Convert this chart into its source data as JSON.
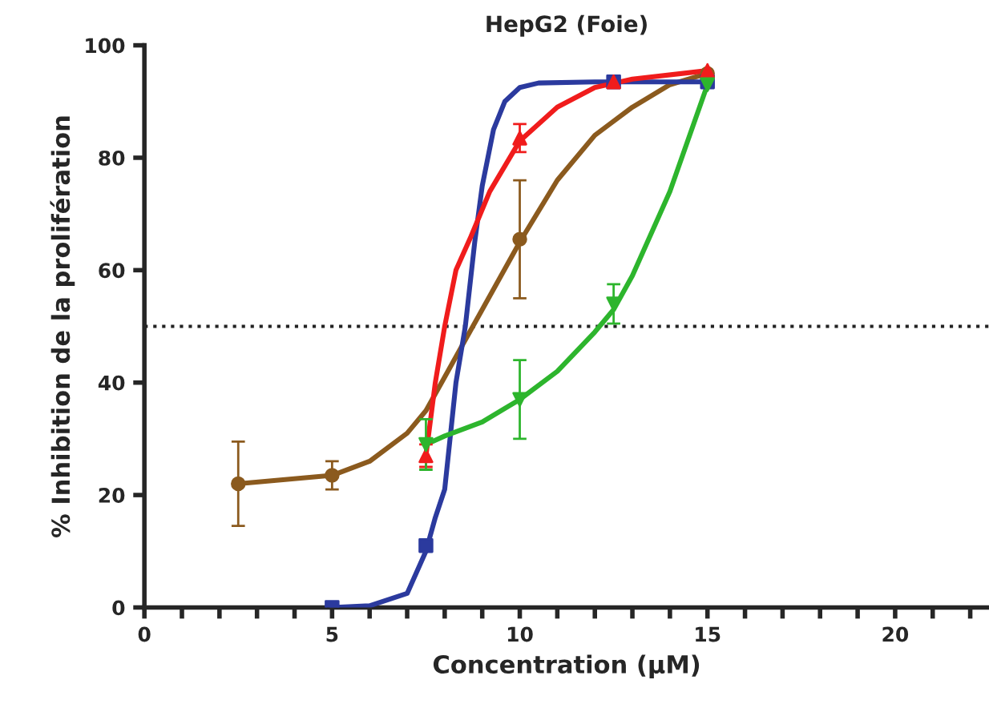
{
  "chart_data": {
    "type": "line",
    "title": "HepG2 (Foie)",
    "xlabel": "Concentration (μM)",
    "ylabel": "% Inhibition de la prolifération",
    "xlim": [
      0,
      22.5
    ],
    "ylim": [
      0,
      100
    ],
    "xticks": [
      0,
      {
        "value": 1,
        "label": null
      },
      {
        "value": 2,
        "label": null
      },
      {
        "value": 3,
        "label": null
      },
      {
        "value": 4,
        "label": null
      },
      5,
      {
        "value": 6,
        "label": null
      },
      {
        "value": 7,
        "label": null
      },
      {
        "value": 8,
        "label": null
      },
      {
        "value": 9,
        "label": null
      },
      10,
      {
        "value": 11,
        "label": null
      },
      {
        "value": 12,
        "label": null
      },
      {
        "value": 13,
        "label": null
      },
      {
        "value": 14,
        "label": null
      },
      15,
      {
        "value": 16,
        "label": null
      },
      {
        "value": 17,
        "label": null
      },
      {
        "value": 18,
        "label": null
      },
      {
        "value": 19,
        "label": null
      },
      20,
      {
        "value": 21,
        "label": null
      },
      {
        "value": 22,
        "label": null
      }
    ],
    "yticks": [
      0,
      20,
      40,
      60,
      80,
      100
    ],
    "grid": false,
    "legend": false,
    "ref_lines": [
      {
        "axis": "y",
        "value": 50,
        "color": "#222222",
        "line_style": "dotted"
      }
    ],
    "series": [
      {
        "color": "#8b5a1e",
        "marker": "none",
        "line_style": "solid",
        "x": [
          2.5,
          5,
          6,
          7,
          7.5,
          8,
          8.5,
          9,
          10,
          11,
          12,
          13,
          14,
          15
        ],
        "values": [
          22,
          23.5,
          26,
          31,
          35,
          41,
          47,
          53,
          65,
          76,
          84,
          89,
          93,
          95
        ]
      },
      {
        "color": "#2b3a9e",
        "marker": "none",
        "line_style": "solid",
        "x": [
          5,
          6,
          7,
          7.5,
          7.75,
          8,
          8.3,
          8.55,
          8.8,
          9,
          9.3,
          9.6,
          10,
          10.5,
          12,
          15
        ],
        "values": [
          0,
          0.3,
          2.5,
          10,
          16,
          21,
          40,
          50,
          65,
          75,
          85,
          90,
          92.5,
          93.3,
          93.5,
          93.5
        ]
      },
      {
        "color": "#f01c1c",
        "marker": "none",
        "line_style": "solid",
        "x": [
          7.5,
          7.75,
          8,
          8.3,
          8.7,
          9.2,
          10,
          11,
          12,
          13,
          15
        ],
        "values": [
          27,
          40,
          50,
          60,
          66,
          74,
          83,
          89,
          92.5,
          94,
          95.5
        ]
      },
      {
        "color": "#2db52d",
        "marker": "none",
        "line_style": "solid",
        "x": [
          7.5,
          8,
          9,
          10,
          11,
          12,
          12.5,
          13,
          14,
          15
        ],
        "values": [
          29,
          30.5,
          33,
          37,
          42,
          49,
          53,
          59,
          74,
          93
        ]
      },
      {
        "type": "scatter",
        "color": "#8b5a1e",
        "marker": "circle",
        "x": [
          2.5,
          5,
          10,
          15
        ],
        "values": [
          22,
          23.5,
          65.5,
          95
        ],
        "errors": [
          7.5,
          2.5,
          10.5,
          null
        ]
      },
      {
        "type": "scatter",
        "color": "#2b3a9e",
        "marker": "square",
        "x": [
          5,
          7.5,
          12.5,
          15
        ],
        "values": [
          0,
          11,
          93.5,
          93.5
        ],
        "errors": [
          null,
          null,
          1,
          null
        ]
      },
      {
        "type": "scatter",
        "color": "#f01c1c",
        "marker": "triangle",
        "x": [
          7.5,
          10,
          12.5,
          15
        ],
        "values": [
          27,
          83.5,
          93.5,
          95.5
        ],
        "errors": [
          2,
          2.5,
          null,
          null
        ]
      },
      {
        "type": "scatter",
        "color": "#2db52d",
        "marker": "triangle_down",
        "x": [
          7.5,
          10,
          12.5,
          15
        ],
        "values": [
          29,
          37,
          54,
          93
        ],
        "errors": [
          4.5,
          7,
          3.5,
          null
        ]
      }
    ]
  }
}
